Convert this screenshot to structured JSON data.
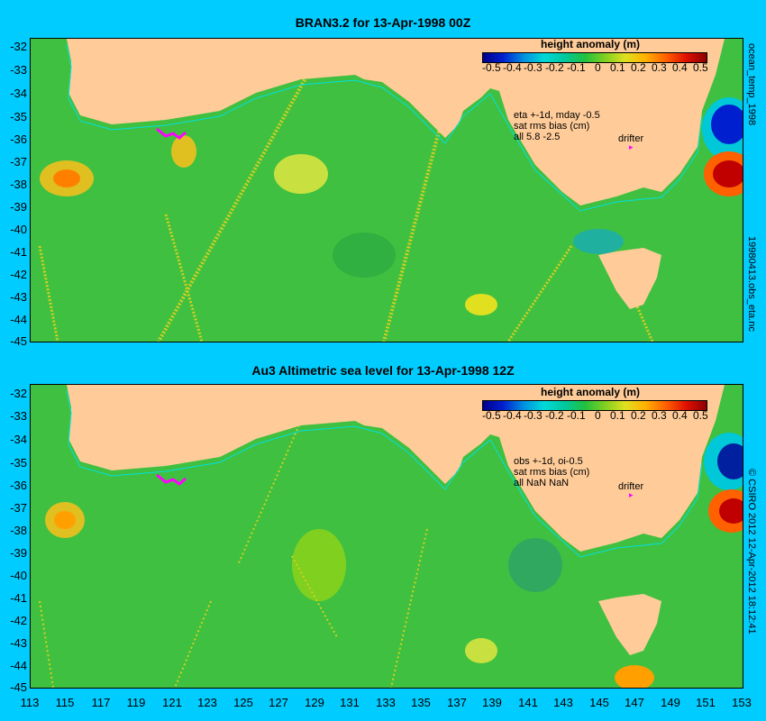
{
  "panels": [
    {
      "title": "BRAN3.2 for 13-Apr-1998 00Z",
      "legend_title": "height anomaly (m)",
      "info": [
        "eta +-1d, mday -0.5",
        "sat rms bias (cm)",
        "all 5.8 -2.5"
      ],
      "drifter_label": "drifter",
      "side_label": "ocean_temp_1998",
      "side_label2": "19980413.obs_eta.nc"
    },
    {
      "title": "Au3 Altimetric sea level  for 13-Apr-1998 12Z",
      "legend_title": "height anomaly (m)",
      "info": [
        "obs +-1d, oi-0.5",
        "sat rms bias (cm)",
        "all NaN NaN"
      ],
      "drifter_label": "drifter",
      "side_label": "© CSIRO  2012   12-Apr-2012 18:12:41"
    }
  ],
  "legend_ticks": [
    "-0.5",
    "-0.4",
    "-0.3",
    "-0.2",
    "-0.1",
    "0",
    "0.1",
    "0.2",
    "0.3",
    "0.4",
    "0.5"
  ],
  "y_ticks": [
    "-32",
    "-33",
    "-34",
    "-35",
    "-36",
    "-37",
    "-38",
    "-39",
    "-40",
    "-41",
    "-42",
    "-43",
    "-44",
    "-45"
  ],
  "x_ticks": [
    "113",
    "115",
    "117",
    "119",
    "121",
    "123",
    "125",
    "127",
    "129",
    "131",
    "133",
    "135",
    "137",
    "139",
    "141",
    "143",
    "145",
    "147",
    "149",
    "151",
    "153"
  ],
  "colors": {
    "background": "#00ccff",
    "land": "#ffcc99",
    "ocean": "#40c040",
    "drifter": "#ff00ff",
    "contour": "#00e0e0"
  }
}
